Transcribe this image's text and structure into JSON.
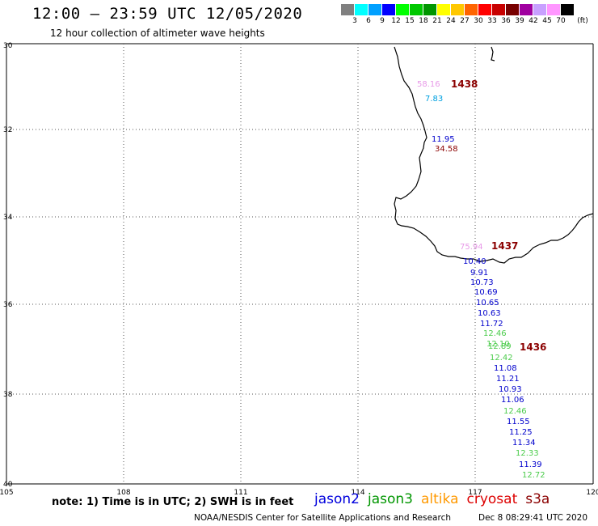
{
  "header": {
    "title": "12:00 – 23:59 UTC 12/05/2020",
    "subtitle": "12 hour collection of altimeter wave heights"
  },
  "legend": {
    "unit": "(ft)",
    "colors": [
      "#808080",
      "#00ffff",
      "#00a0ff",
      "#0000ff",
      "#00ff00",
      "#00c800",
      "#009600",
      "#ffff00",
      "#ffc800",
      "#ff6400",
      "#ff0000",
      "#c80000",
      "#780000",
      "#a000a0",
      "#c8a0ff",
      "#ff96ff",
      "#000000"
    ],
    "labels": [
      "3",
      "6",
      "9",
      "12",
      "15",
      "18",
      "21",
      "24",
      "27",
      "30",
      "33",
      "36",
      "39",
      "42",
      "45",
      "70"
    ]
  },
  "axes": {
    "lat_labels": [
      "30",
      "32",
      "34",
      "36",
      "38",
      "40"
    ],
    "lon_labels": [
      "105",
      "108",
      "111",
      "114",
      "117",
      "120"
    ]
  },
  "pass_times": [
    "1438",
    "1437",
    "1436"
  ],
  "observations": [
    {
      "v": "58.16",
      "c": "#e89ae8"
    },
    {
      "v": "7.83",
      "c": "#00a0e0"
    },
    {
      "v": "11.95",
      "c": "#0000cc"
    },
    {
      "v": "34.58",
      "c": "#8b0000"
    },
    {
      "v": "75.94",
      "c": "#e89ae8"
    },
    {
      "v": "10.40",
      "c": "#0000cc"
    },
    {
      "v": "9.91",
      "c": "#0000cc"
    },
    {
      "v": "10.73",
      "c": "#0000cc"
    },
    {
      "v": "10.69",
      "c": "#0000cc"
    },
    {
      "v": "10.65",
      "c": "#0000cc"
    },
    {
      "v": "10.63",
      "c": "#0000cc"
    },
    {
      "v": "11.72",
      "c": "#0000cc"
    },
    {
      "v": "12.46",
      "c": "#4ccc4c"
    },
    {
      "v": "12.10",
      "c": "#4ccc4c"
    },
    {
      "v": "12.89",
      "c": "#4ccc4c"
    },
    {
      "v": "12.42",
      "c": "#4ccc4c"
    },
    {
      "v": "11.08",
      "c": "#0000cc"
    },
    {
      "v": "11.21",
      "c": "#0000cc"
    },
    {
      "v": "10.93",
      "c": "#0000cc"
    },
    {
      "v": "11.06",
      "c": "#0000cc"
    },
    {
      "v": "12.46",
      "c": "#4ccc4c"
    },
    {
      "v": "11.55",
      "c": "#0000cc"
    },
    {
      "v": "11.25",
      "c": "#0000cc"
    },
    {
      "v": "11.34",
      "c": "#0000cc"
    },
    {
      "v": "12.33",
      "c": "#4ccc4c"
    },
    {
      "v": "11.39",
      "c": "#0000cc"
    },
    {
      "v": "12.72",
      "c": "#4ccc4c"
    }
  ],
  "note": "note: 1) Time is in UTC; 2) SWH is in feet",
  "satellites": [
    {
      "name": "jason2",
      "color": "#0000dd"
    },
    {
      "name": "jason3",
      "color": "#009600"
    },
    {
      "name": "altika",
      "color": "#ff9900"
    },
    {
      "name": "cryosat",
      "color": "#dd0000"
    },
    {
      "name": "s3a",
      "color": "#8b0000"
    }
  ],
  "footer": {
    "credit": "NOAA/NESDIS Center for Satellite Applications and Research",
    "timestamp": "Dec  8 08:29:41 UTC 2020"
  }
}
